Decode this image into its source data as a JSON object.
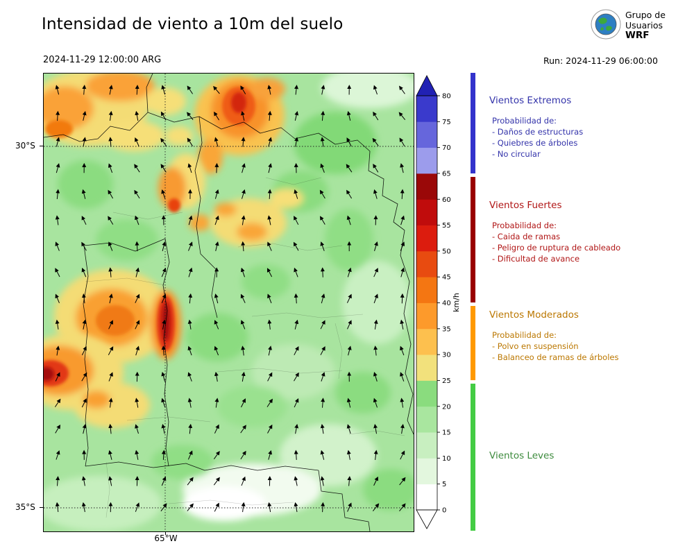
{
  "header": {
    "title": "Intensidad de viento a 10m del suelo",
    "valid_time": "2024-11-29 12:00:00 ARG",
    "run_label": "Run: 2024-11-29 06:00:00",
    "logo": {
      "line1": "Grupo de",
      "line2": "Usuarios",
      "line3": "WRF"
    }
  },
  "map_axes": {
    "lat_top": "30°S",
    "lat_bottom": "35°S",
    "lon": "65°W"
  },
  "colorbar": {
    "unit": "km/h",
    "ticks": [
      "0",
      "5",
      "10",
      "15",
      "20",
      "25",
      "30",
      "35",
      "40",
      "45",
      "50",
      "55",
      "60",
      "65",
      "70",
      "75",
      "80"
    ],
    "segment_colors": [
      "#ffffff",
      "#e3f7de",
      "#c8efc0",
      "#a9e69f",
      "#8adc7e",
      "#f2e17c",
      "#fdc04e",
      "#fd9a2b",
      "#f47612",
      "#e84b10",
      "#dc1c0e",
      "#c00c0c",
      "#9a0808",
      "#9c9cec",
      "#6666dc",
      "#3a3acc"
    ],
    "over_color": "#2121b4",
    "under_color": "#ffffff"
  },
  "legend": {
    "categories": [
      {
        "name": "Vientos Extremos",
        "strip_color": "#3333cc",
        "text_color": "#3333aa",
        "prob_label": "Probabilidad de:",
        "items": [
          "- Daños de estructuras",
          "- Quiebres de árboles",
          "- No circular"
        ]
      },
      {
        "name": "Vientos Fuertes",
        "strip_color": "#990000",
        "text_color": "#b01515",
        "prob_label": "Probabilidad de:",
        "items": [
          "- Caida de ramas",
          "- Peligro de ruptura de cableado",
          "- Dificultad de avance"
        ]
      },
      {
        "name": "Vientos Moderados",
        "strip_color": "#ff9900",
        "text_color": "#bb7700",
        "prob_label": "Probabilidad de:",
        "items": [
          "- Polvo en suspensión",
          "- Balanceo de ramas de árboles"
        ]
      },
      {
        "name": "Vientos Leves",
        "strip_color": "#44cc44",
        "text_color": "#3d8b3d",
        "prob_label": "",
        "items": []
      }
    ]
  },
  "chart_data": {
    "type": "heatmap",
    "title": "Intensidad de viento a 10m del suelo",
    "subtitle": "2024-11-29 12:00:00 ARG",
    "units": "km/h",
    "colorbar_ticks": [
      0,
      5,
      10,
      15,
      20,
      25,
      30,
      35,
      40,
      45,
      50,
      55,
      60,
      65,
      70,
      75,
      80
    ],
    "colorbar_extend": "both",
    "x_ticks": [
      "65°W"
    ],
    "y_ticks": [
      "30°S",
      "35°S"
    ],
    "overlay": "wind direction quiver arrows",
    "categories_scale": [
      {
        "label": "Vientos Leves",
        "range_kmh": [
          0,
          25
        ]
      },
      {
        "label": "Vientos Moderados",
        "range_kmh": [
          25,
          40
        ]
      },
      {
        "label": "Vientos Fuertes",
        "range_kmh": [
          40,
          65
        ]
      },
      {
        "label": "Vientos Extremos",
        "range_kmh": [
          65,
          85
        ]
      }
    ]
  }
}
